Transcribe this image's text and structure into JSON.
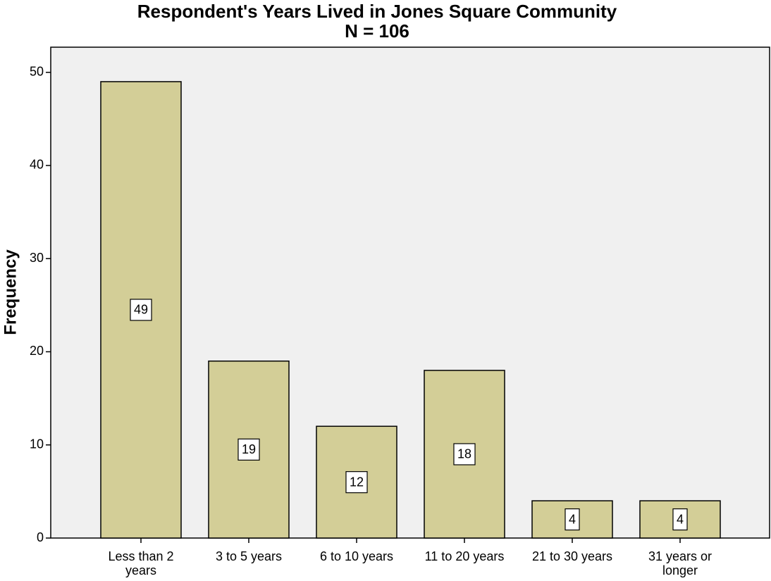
{
  "chart_data": {
    "type": "bar",
    "title": "Respondent's Years Lived in Jones Square Community",
    "subtitle": "N = 106",
    "y_label": "Frequency",
    "categories": [
      "Less than 2 years",
      "3 to 5 years",
      "6 to 10 years",
      "11 to 20 years",
      "21 to 30 years",
      "31 years or longer"
    ],
    "values": [
      49,
      19,
      12,
      18,
      4,
      4
    ],
    "color": "#d3ce97",
    "ylim": [
      0,
      52.7
    ],
    "yticks": [
      0,
      10,
      20,
      30,
      40,
      50
    ],
    "grid": false
  }
}
